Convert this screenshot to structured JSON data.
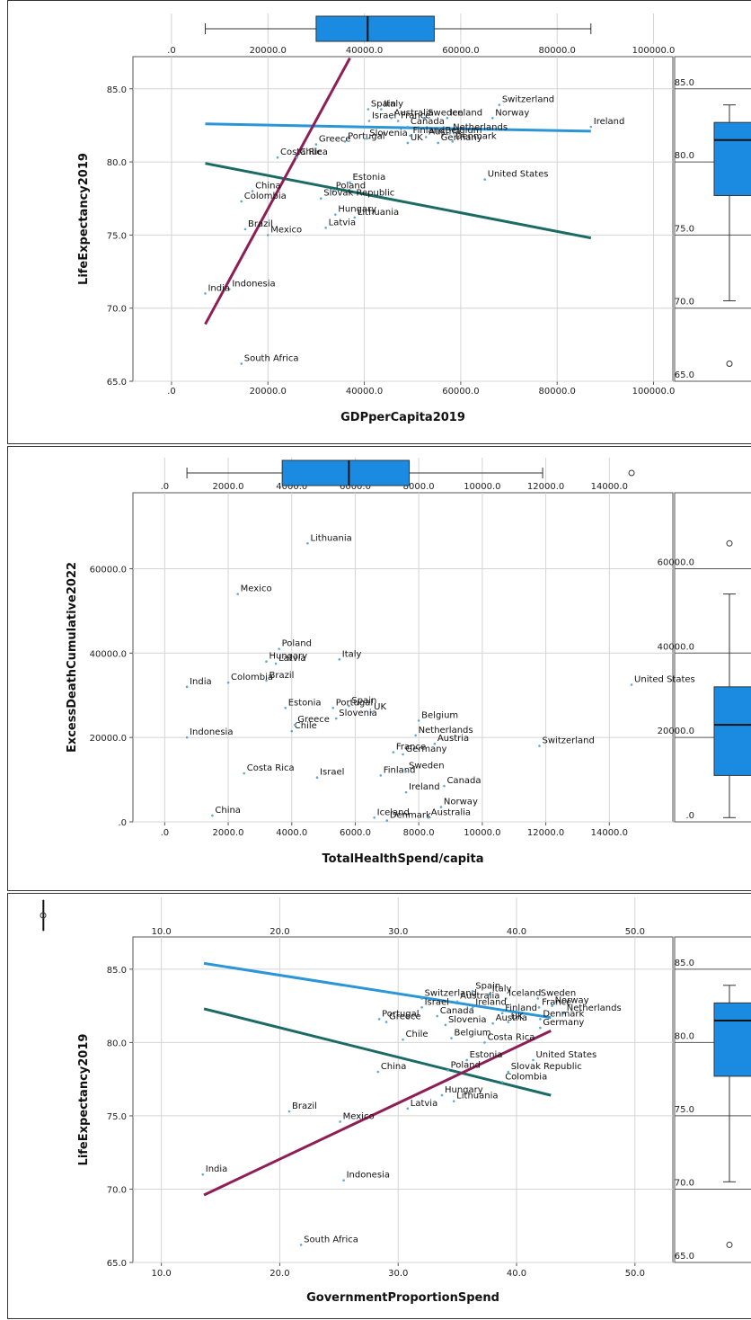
{
  "chart_data": [
    {
      "type": "scatter",
      "xlabel": "GDPperCapita2019",
      "ylabel": "LifeExpectancy2019",
      "xlim": [
        -8000,
        104000
      ],
      "ylim": [
        65,
        87.2
      ],
      "xticks": [
        0,
        20000,
        40000,
        60000,
        80000,
        100000
      ],
      "xtick_labels": [
        ".0",
        "20000.0",
        "40000.0",
        "60000.0",
        "80000.0",
        "100000.0"
      ],
      "yticks": [
        65,
        70,
        75,
        80,
        85
      ],
      "ytick_labels": [
        "65.0",
        "70.0",
        "75.0",
        "80.0",
        "85.0"
      ],
      "points": [
        {
          "label": "Spain",
          "x": 40800,
          "y": 83.6
        },
        {
          "label": "Italy",
          "x": 43500,
          "y": 83.6
        },
        {
          "label": "Sweden",
          "x": 52600,
          "y": 83.0
        },
        {
          "label": "Switzerland",
          "x": 68000,
          "y": 83.9
        },
        {
          "label": "Israel",
          "x": 41000,
          "y": 82.8
        },
        {
          "label": "France",
          "x": 47000,
          "y": 82.8
        },
        {
          "label": "Iceland",
          "x": 57200,
          "y": 83.0
        },
        {
          "label": "Norway",
          "x": 66600,
          "y": 83.0
        },
        {
          "label": "Ireland",
          "x": 87000,
          "y": 82.4
        },
        {
          "label": "Australia",
          "x": 45600,
          "y": 83.0
        },
        {
          "label": "Austria",
          "x": 52800,
          "y": 81.7
        },
        {
          "label": "Belgium",
          "x": 56200,
          "y": 81.8
        },
        {
          "label": "Netherlands",
          "x": 57800,
          "y": 82.0
        },
        {
          "label": "Greece",
          "x": 30000,
          "y": 81.2
        },
        {
          "label": "Canada",
          "x": 49000,
          "y": 82.4
        },
        {
          "label": "Denmark",
          "x": 58300,
          "y": 81.4
        },
        {
          "label": "Portugal",
          "x": 36000,
          "y": 81.4
        },
        {
          "label": "Slovenia",
          "x": 40500,
          "y": 81.6
        },
        {
          "label": "UK",
          "x": 49000,
          "y": 81.3
        },
        {
          "label": "Germany",
          "x": 55300,
          "y": 81.3
        },
        {
          "label": "Chile",
          "x": 26000,
          "y": 80.3
        },
        {
          "label": "Finland",
          "x": 49500,
          "y": 81.8
        },
        {
          "label": "United States",
          "x": 65000,
          "y": 78.8
        },
        {
          "label": "Costa Rica",
          "x": 22000,
          "y": 80.3
        },
        {
          "label": "Estonia",
          "x": 37000,
          "y": 78.6
        },
        {
          "label": "China",
          "x": 16800,
          "y": 78.0
        },
        {
          "label": "Poland",
          "x": 33500,
          "y": 78.0
        },
        {
          "label": "Slovak Republic",
          "x": 31000,
          "y": 77.5
        },
        {
          "label": "Hungary",
          "x": 34000,
          "y": 76.4
        },
        {
          "label": "Colombia",
          "x": 14500,
          "y": 77.3
        },
        {
          "label": "Brazil",
          "x": 15300,
          "y": 75.4
        },
        {
          "label": "Latvia",
          "x": 32000,
          "y": 75.5
        },
        {
          "label": "Lithuania",
          "x": 38000,
          "y": 76.2
        },
        {
          "label": "Mexico",
          "x": 20000,
          "y": 75.0
        },
        {
          "label": "Indonesia",
          "x": 12000,
          "y": 71.3
        },
        {
          "label": "India",
          "x": 7000,
          "y": 71.0
        },
        {
          "label": "South Africa",
          "x": 14500,
          "y": 66.2
        }
      ],
      "fit_lines": [
        {
          "color": "#2b95d6",
          "x": [
            7000,
            87000
          ],
          "y": [
            82.6,
            82.1
          ]
        },
        {
          "color": "#1b6b64",
          "x": [
            7000,
            87000
          ],
          "y": [
            79.9,
            74.8
          ]
        },
        {
          "color": "#8e1f56",
          "x": [
            7000,
            37000
          ],
          "y": [
            68.9,
            87.1
          ]
        }
      ],
      "top_boxplot": {
        "min": 7000,
        "q1": 30000,
        "median": 40700,
        "q3": 54500,
        "max": 87000
      },
      "side_boxplot": {
        "yticks": [
          65,
          70,
          75,
          80,
          85
        ],
        "ytick_labels": [
          "65.0",
          "70.0",
          "75.0",
          "80.0",
          "85.0"
        ],
        "min": 70.5,
        "q1": 77.7,
        "median": 81.5,
        "q3": 82.7,
        "max": 83.9,
        "outliers": [
          66.2
        ]
      }
    },
    {
      "type": "scatter",
      "xlabel": "TotalHealthSpend/capita",
      "ylabel": "ExcessDeathCumulative2022",
      "xlim": [
        -1000,
        16000
      ],
      "ylim": [
        0,
        78000
      ],
      "xticks": [
        0,
        2000,
        4000,
        6000,
        8000,
        10000,
        12000,
        14000
      ],
      "xtick_labels": [
        ".0",
        "2000.0",
        "4000.0",
        "6000.0",
        "8000.0",
        "10000.0",
        "12000.0",
        "14000.0"
      ],
      "yticks": [
        0,
        20000,
        40000,
        60000
      ],
      "ytick_labels": [
        ".0",
        "20000.0",
        "40000.0",
        "60000.0"
      ],
      "points": [
        {
          "label": "Lithuania",
          "x": 4500,
          "y": 66000
        },
        {
          "label": "Mexico",
          "x": 2300,
          "y": 54000
        },
        {
          "label": "Poland",
          "x": 3600,
          "y": 41000
        },
        {
          "label": "Italy",
          "x": 5500,
          "y": 38500
        },
        {
          "label": "Hungary",
          "x": 3200,
          "y": 38000
        },
        {
          "label": "Latvia",
          "x": 3500,
          "y": 37500
        },
        {
          "label": "Brazil",
          "x": 3200,
          "y": 33500
        },
        {
          "label": "India",
          "x": 700,
          "y": 32000
        },
        {
          "label": "Colombia",
          "x": 2000,
          "y": 33000
        },
        {
          "label": "United States",
          "x": 14700,
          "y": 32500
        },
        {
          "label": "Spain",
          "x": 5800,
          "y": 27500
        },
        {
          "label": "Estonia",
          "x": 3800,
          "y": 27000
        },
        {
          "label": "Portugal",
          "x": 5300,
          "y": 27000
        },
        {
          "label": "UK",
          "x": 6500,
          "y": 26000
        },
        {
          "label": "Slovenia",
          "x": 5400,
          "y": 24500
        },
        {
          "label": "Belgium",
          "x": 8000,
          "y": 24000
        },
        {
          "label": "Indonesia",
          "x": 700,
          "y": 20000
        },
        {
          "label": "Chile",
          "x": 4000,
          "y": 21500
        },
        {
          "label": "Greece",
          "x": 4100,
          "y": 23000
        },
        {
          "label": "Netherlands",
          "x": 7900,
          "y": 20500
        },
        {
          "label": "France",
          "x": 7200,
          "y": 16500
        },
        {
          "label": "Austria",
          "x": 8500,
          "y": 18500
        },
        {
          "label": "Switzerland",
          "x": 11800,
          "y": 18000
        },
        {
          "label": "Germany",
          "x": 7500,
          "y": 16000
        },
        {
          "label": "Costa Rica",
          "x": 2500,
          "y": 11500
        },
        {
          "label": "Israel",
          "x": 4800,
          "y": 10500
        },
        {
          "label": "Finland",
          "x": 6800,
          "y": 11000
        },
        {
          "label": "Sweden",
          "x": 7600,
          "y": 12000
        },
        {
          "label": "Canada",
          "x": 8800,
          "y": 8500
        },
        {
          "label": "Ireland",
          "x": 7600,
          "y": 7000
        },
        {
          "label": "Norway",
          "x": 8700,
          "y": 3500
        },
        {
          "label": "China",
          "x": 1500,
          "y": 1500
        },
        {
          "label": "Iceland",
          "x": 6600,
          "y": 1000
        },
        {
          "label": "Denmark",
          "x": 7000,
          "y": 300
        },
        {
          "label": "Australia",
          "x": 8300,
          "y": 1000
        }
      ],
      "top_boxplot": {
        "min": 700,
        "q1": 3700,
        "median": 5800,
        "q3": 7700,
        "max": 11900,
        "outliers": [
          14700
        ]
      },
      "side_boxplot": {
        "yticks": [
          0,
          20000,
          40000,
          60000
        ],
        "ytick_labels": [
          ".0",
          "20000.0",
          "40000.0",
          "60000.0"
        ],
        "min": 1000,
        "q1": 11000,
        "median": 23000,
        "q3": 32000,
        "max": 54000,
        "outliers": [
          66000
        ]
      }
    },
    {
      "type": "scatter",
      "xlabel": "GovernmentProportionSpend",
      "ylabel": "LifeExpectancy2019",
      "xlim": [
        7.6,
        53.2
      ],
      "ylim": [
        65,
        87.2
      ],
      "xticks": [
        10,
        20,
        30,
        40,
        50
      ],
      "xtick_labels": [
        "10.0",
        "20.0",
        "30.0",
        "40.0",
        "50.0"
      ],
      "yticks": [
        65,
        70,
        75,
        80,
        85
      ],
      "ytick_labels": [
        "65.0",
        "70.0",
        "75.0",
        "80.0",
        "85.0"
      ],
      "points": [
        {
          "label": "Switzerland",
          "x": 32000,
          "y": 83.0
        },
        {
          "label": "Spain",
          "x": 36300,
          "y": 83.5
        },
        {
          "label": "Italy",
          "x": 37700,
          "y": 83.3
        },
        {
          "label": "Iceland",
          "x": 39100,
          "y": 83.0
        },
        {
          "label": "Sweden",
          "x": 41800,
          "y": 83.0
        },
        {
          "label": "Norway",
          "x": 43000,
          "y": 82.5
        },
        {
          "label": "Australia",
          "x": 35000,
          "y": 82.8
        },
        {
          "label": "Israel",
          "x": 32000,
          "y": 82.4
        },
        {
          "label": "Ireland",
          "x": 36300,
          "y": 82.4
        },
        {
          "label": "Finland",
          "x": 38800,
          "y": 82.0
        },
        {
          "label": "France",
          "x": 41900,
          "y": 82.4
        },
        {
          "label": "Netherlands",
          "x": 44000,
          "y": 82.0
        },
        {
          "label": "Greece",
          "x": 29000,
          "y": 81.4
        },
        {
          "label": "Canada",
          "x": 33300,
          "y": 81.8
        },
        {
          "label": "Denmark",
          "x": 42000,
          "y": 81.6
        },
        {
          "label": "UK",
          "x": 39300,
          "y": 81.4
        },
        {
          "label": "Portugal",
          "x": 28400,
          "y": 81.6
        },
        {
          "label": "Slovenia",
          "x": 34000,
          "y": 81.2
        },
        {
          "label": "Austria",
          "x": 38000,
          "y": 81.3
        },
        {
          "label": "Germany",
          "x": 42000,
          "y": 81.0
        },
        {
          "label": "Chile",
          "x": 30400,
          "y": 80.2
        },
        {
          "label": "Belgium",
          "x": 34500,
          "y": 80.3
        },
        {
          "label": "Costa Rica",
          "x": 37300,
          "y": 80.0
        },
        {
          "label": "United States",
          "x": 41400,
          "y": 78.8
        },
        {
          "label": "China",
          "x": 28300,
          "y": 78.0
        },
        {
          "label": "Estonia",
          "x": 35800,
          "y": 78.8
        },
        {
          "label": "Poland",
          "x": 34200,
          "y": 78.1
        },
        {
          "label": "Slovak Republic",
          "x": 39300,
          "y": 78.0
        },
        {
          "label": "Colombia",
          "x": 38800,
          "y": 77.3
        },
        {
          "label": "Hungary",
          "x": 33700,
          "y": 76.4
        },
        {
          "label": "Latvia",
          "x": 30800,
          "y": 75.5
        },
        {
          "label": "Lithuania",
          "x": 34700,
          "y": 76.0
        },
        {
          "label": "Brazil",
          "x": 20800,
          "y": 75.3
        },
        {
          "label": "Mexico",
          "x": 25100,
          "y": 74.6
        },
        {
          "label": "India",
          "x": 13500,
          "y": 71.0
        },
        {
          "label": "Indonesia",
          "x": 25400,
          "y": 70.6
        },
        {
          "label": "South Africa",
          "x": 21800,
          "y": 66.2
        }
      ],
      "fit_lines": [
        {
          "color": "#2b95d6",
          "x": [
            13.6,
            42.9
          ],
          "y": [
            85.4,
            81.7
          ]
        },
        {
          "color": "#1b6b64",
          "x": [
            13.6,
            42.9
          ],
          "y": [
            82.3,
            76.4
          ]
        },
        {
          "color": "#8e1f56",
          "x": [
            13.6,
            42.9
          ],
          "y": [
            69.6,
            80.8
          ]
        }
      ],
      "top_boxplot": {
        "min": 21,
        "q1": 30.9,
        "median": 36.5,
        "q3": 39.5,
        "max": 43,
        "outliers": [
          13.6
        ]
      },
      "side_boxplot": {
        "yticks": [
          65,
          70,
          75,
          80,
          85
        ],
        "ytick_labels": [
          "65.0",
          "70.0",
          "75.0",
          "80.0",
          "85.0"
        ],
        "min": 70.5,
        "q1": 77.7,
        "median": 81.5,
        "q3": 82.7,
        "max": 83.9,
        "outliers": [
          66.2
        ]
      }
    }
  ]
}
